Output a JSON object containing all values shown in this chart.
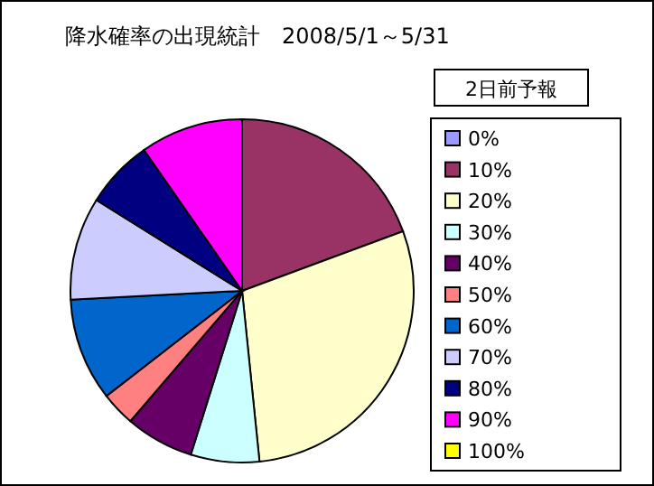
{
  "chart_data": {
    "type": "pie",
    "title": "降水確率の出現統計　2008/5/1～5/31",
    "legend_title": "2日前予報",
    "legend": "right",
    "categories": [
      "0%",
      "10%",
      "20%",
      "30%",
      "40%",
      "50%",
      "60%",
      "70%",
      "80%",
      "90%",
      "100%"
    ],
    "values": [
      0,
      19.35,
      29.03,
      6.45,
      6.45,
      3.23,
      9.68,
      9.68,
      6.45,
      9.68,
      0
    ],
    "colors": [
      "#9999ff",
      "#993366",
      "#ffffcc",
      "#ccffff",
      "#660066",
      "#ff8080",
      "#0066cc",
      "#ccccff",
      "#000080",
      "#ff00ff",
      "#ffff00"
    ]
  }
}
